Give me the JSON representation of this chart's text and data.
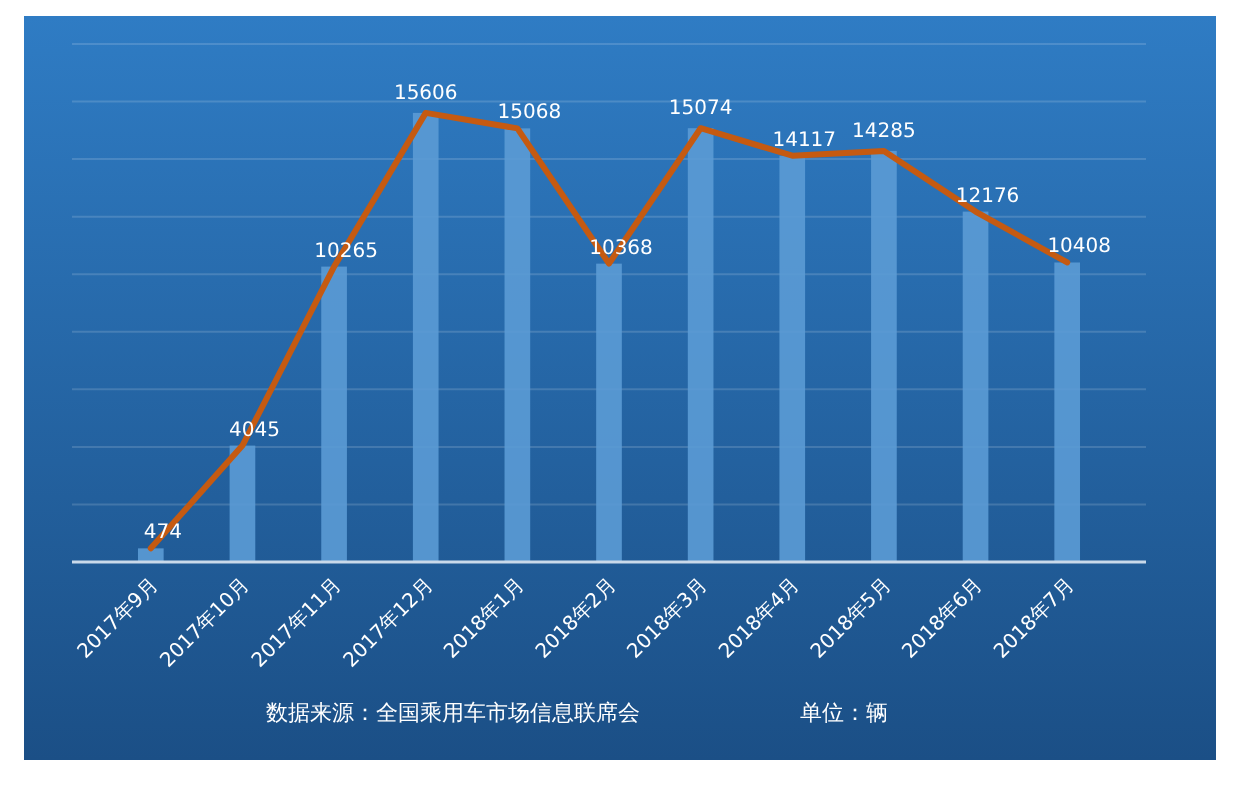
{
  "chart_data": {
    "type": "bar",
    "categories": [
      "2017年9月",
      "2017年10月",
      "2017年11月",
      "2017年12月",
      "2018年1月",
      "2018年2月",
      "2018年3月",
      "2018年4月",
      "2018年5月",
      "2018年6月",
      "2018年7月"
    ],
    "series": [
      {
        "color": "#5b9bd5",
        "values": [
          474,
          4045,
          10265,
          15606,
          15068,
          10368,
          15074,
          14117,
          14285,
          12176,
          10408
        ],
        "value_labels": [
          "474",
          "4045",
          "10265",
          "15606",
          "15068",
          "10368",
          "15074",
          "14117",
          "14285",
          "12176",
          "10408"
        ]
      },
      {
        "type": "line",
        "color": "#c55a11",
        "values": [
          474,
          4045,
          10265,
          15606,
          15068,
          10368,
          15074,
          14117,
          14285,
          12176,
          10408
        ]
      }
    ],
    "ylim": [
      0,
      18000
    ],
    "yticks": [
      {
        "value": 0,
        "label": null
      },
      {
        "value": 2000,
        "label": null
      },
      {
        "value": 4000,
        "label": null
      },
      {
        "value": 6000,
        "label": null
      },
      {
        "value": 8000,
        "label": null
      },
      {
        "value": 10000,
        "label": null
      },
      {
        "value": 12000,
        "label": null
      },
      {
        "value": 14000,
        "label": null
      },
      {
        "value": 16000,
        "label": null
      },
      {
        "value": 18000,
        "label": null
      }
    ],
    "grid": "y",
    "tick_labels": "x",
    "line_style": "solid",
    "marker": "none",
    "annotations": [
      "数据来源：全国乘用车市场信息联席会",
      "单位：辆"
    ]
  }
}
